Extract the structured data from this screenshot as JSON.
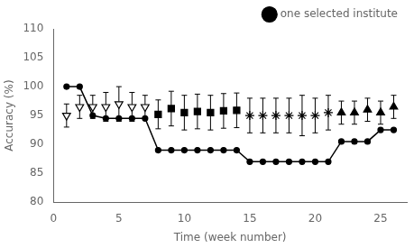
{
  "chart_data": {
    "type": "line",
    "xlabel": "Time (week number)",
    "ylabel": "Accuracy (%)",
    "xlim": [
      0,
      27
    ],
    "ylim": [
      80,
      110
    ],
    "xticks": [
      0,
      5,
      10,
      15,
      20,
      25
    ],
    "yticks": [
      80,
      85,
      90,
      95,
      100,
      105,
      110
    ],
    "grid": false,
    "legend": "upper right",
    "series": [
      {
        "name": "one selected institute",
        "type": "line",
        "marker": "circle",
        "color": "#000000",
        "x": [
          1,
          2,
          3,
          4,
          5,
          6,
          7,
          8,
          9,
          10,
          11,
          12,
          13,
          14,
          15,
          16,
          17,
          18,
          19,
          20,
          21,
          22,
          23,
          24,
          25,
          26
        ],
        "values": [
          100,
          100,
          95,
          94.5,
          94.5,
          94.5,
          94.5,
          89,
          89,
          89,
          89,
          89,
          89,
          89,
          87,
          87,
          87,
          87,
          87,
          87,
          87,
          90.5,
          90.5,
          90.5,
          92.5,
          92.5
        ]
      },
      {
        "type": "scatter",
        "marker": "triangle-down-open",
        "color": "#000000",
        "x": [
          1,
          2,
          3,
          4,
          5,
          6,
          7
        ],
        "values": [
          95,
          96.5,
          96.5,
          96.5,
          97,
          96.5,
          96.5
        ],
        "errors": [
          2.0,
          2.0,
          2.0,
          2.5,
          3.0,
          2.5,
          2.0
        ]
      },
      {
        "type": "scatter",
        "marker": "square",
        "color": "#000000",
        "x": [
          8,
          9,
          10,
          11,
          12,
          13,
          14
        ],
        "values": [
          95.2,
          96.2,
          95.5,
          95.7,
          95.5,
          95.8,
          95.9
        ],
        "errors": [
          2.5,
          3.0,
          3.0,
          3.0,
          3.0,
          3.0,
          3.0
        ]
      },
      {
        "type": "scatter",
        "marker": "star",
        "color": "#000000",
        "x": [
          15,
          16,
          17,
          18,
          19,
          20,
          21
        ],
        "values": [
          95.0,
          95.0,
          95.0,
          95.0,
          95.0,
          95.0,
          95.5
        ],
        "errors": [
          3.0,
          3.0,
          3.0,
          3.0,
          3.5,
          3.0,
          3.0
        ]
      },
      {
        "type": "scatter",
        "marker": "triangle",
        "color": "#000000",
        "x": [
          22,
          23,
          24,
          25,
          26
        ],
        "values": [
          95.5,
          95.5,
          96.0,
          95.5,
          96.5
        ],
        "errors": [
          2.0,
          2.0,
          2.0,
          2.0,
          2.0
        ]
      }
    ]
  }
}
